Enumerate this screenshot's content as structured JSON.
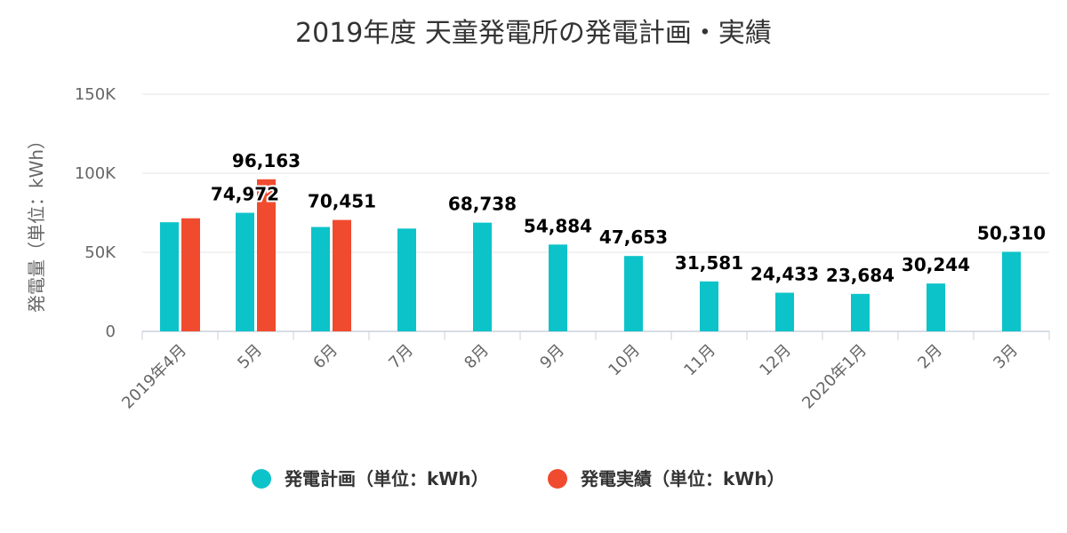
{
  "chart_data": {
    "type": "bar",
    "title": "2019年度 天童発電所の発電計画・実績",
    "ylabel": "発電量（単位：kWh）",
    "ylim": [
      0,
      150000
    ],
    "yticks": [
      {
        "value": 0,
        "label": "0"
      },
      {
        "value": 50000,
        "label": "50K"
      },
      {
        "value": 100000,
        "label": "100K"
      },
      {
        "value": 150000,
        "label": "150K"
      }
    ],
    "categories": [
      "2019年4月",
      "5月",
      "6月",
      "7月",
      "8月",
      "9月",
      "10月",
      "11月",
      "12月",
      "2020年1月",
      "2月",
      "3月"
    ],
    "series": [
      {
        "name": "発電計画（単位：kWh）",
        "color": "#0cc3c9",
        "values": [
          69000,
          74972,
          66000,
          65000,
          68738,
          54884,
          47653,
          31581,
          24433,
          23684,
          30244,
          50310
        ],
        "labels": [
          "",
          "74,972",
          "",
          "",
          "68,738",
          "54,884",
          "47,653",
          "31,581",
          "24,433",
          "23,684",
          "30,244",
          "50,310"
        ]
      },
      {
        "name": "発電実績（単位：kWh）",
        "color": "#f04b2f",
        "values": [
          71500,
          96163,
          70451,
          null,
          null,
          null,
          null,
          null,
          null,
          null,
          null,
          null
        ],
        "labels": [
          "",
          "96,163",
          "70,451",
          "",
          "",
          "",
          "",
          "",
          "",
          "",
          "",
          ""
        ]
      }
    ],
    "grid": true,
    "legend_position": "bottom"
  }
}
